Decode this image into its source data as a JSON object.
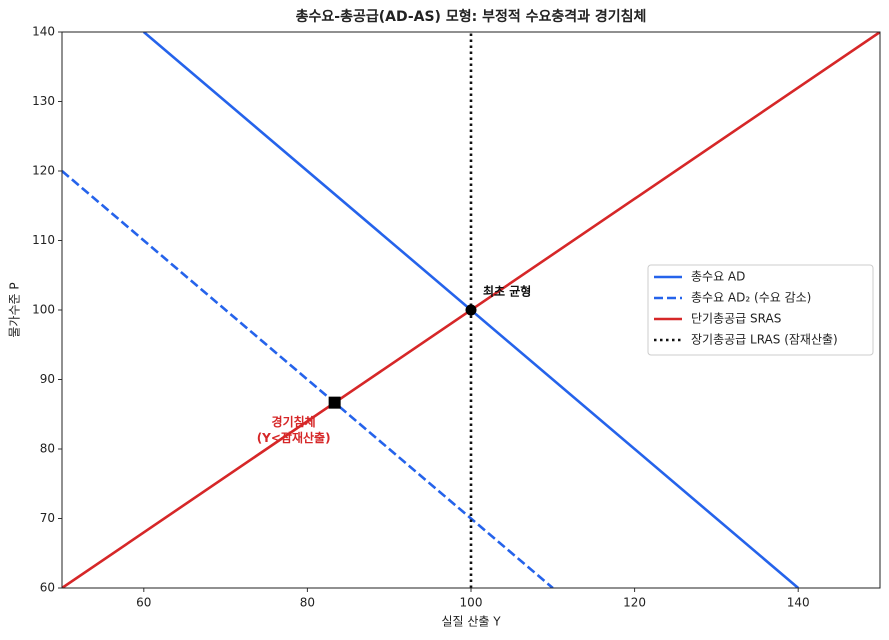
{
  "chart_data": {
    "type": "line",
    "title": "총수요-총공급(AD-AS) 모형: 부정적 수요충격과 경기침체",
    "x_label": "실질 산출 Y",
    "y_label": "물가수준 P",
    "xlim": [
      50,
      150
    ],
    "ylim": [
      60,
      140
    ],
    "xticks": [
      60,
      80,
      100,
      120,
      140
    ],
    "yticks": [
      60,
      70,
      80,
      90,
      100,
      110,
      120,
      130,
      140
    ],
    "grid": false,
    "legend_position": "center right",
    "series": [
      {
        "name": "총수요 AD",
        "color": "#2563eb",
        "dash": "solid",
        "x": [
          60,
          140
        ],
        "values": [
          140,
          60
        ]
      },
      {
        "name": "총수요 AD₂ (수요 감소)",
        "color": "#2563eb",
        "dash": "dashed",
        "x": [
          50,
          110
        ],
        "values": [
          120,
          60
        ]
      },
      {
        "name": "단기총공급 SRAS",
        "color": "#d62728",
        "dash": "solid",
        "x": [
          50,
          150
        ],
        "values": [
          60,
          140
        ]
      },
      {
        "name": "장기총공급 LRAS (잠재산출)",
        "color": "#111111",
        "dash": "dotted",
        "x": [
          100,
          100
        ],
        "values": [
          60,
          140
        ]
      }
    ],
    "points": [
      {
        "x": 100,
        "y": 100,
        "marker": "circle",
        "color": "#000000",
        "label": [
          "최초 균형"
        ],
        "label_color": "#111111"
      },
      {
        "x": 83.33,
        "y": 86.67,
        "marker": "square",
        "color": "#000000",
        "label": [
          "경기침체",
          "(Y<잠재산출)"
        ],
        "label_color": "#d62728"
      }
    ]
  }
}
